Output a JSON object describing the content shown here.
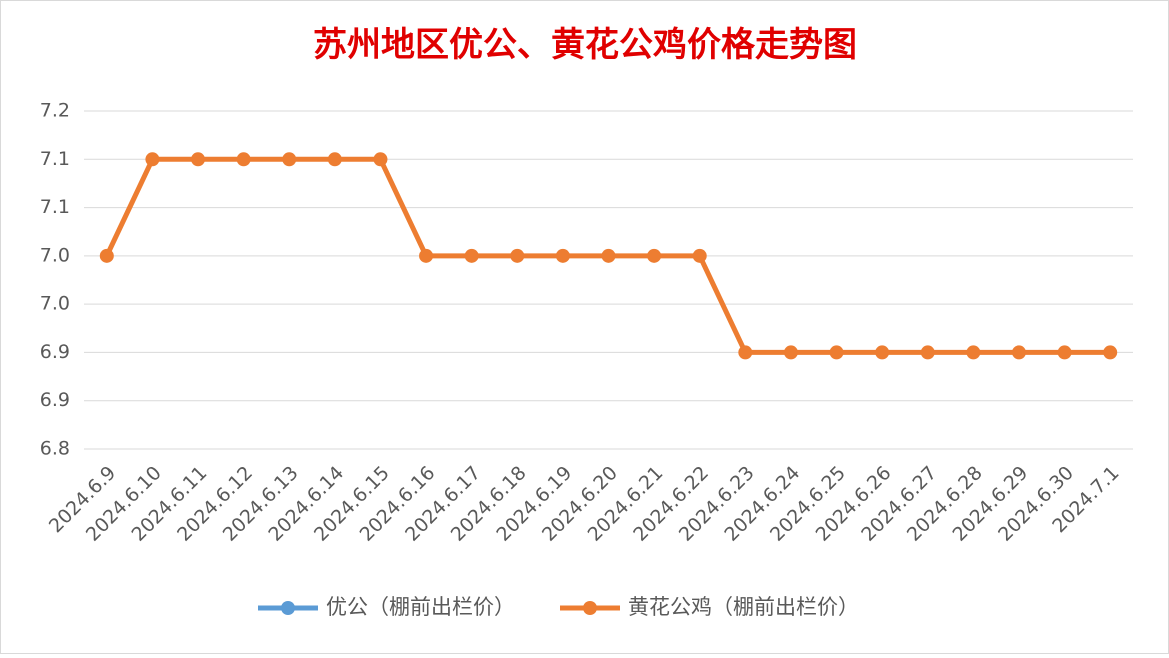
{
  "chart_data": {
    "type": "line",
    "title": "苏州地区优公、黄花公鸡价格走势图",
    "categories": [
      "2024.6.9",
      "2024.6.10",
      "2024.6.11",
      "2024.6.12",
      "2024.6.13",
      "2024.6.14",
      "2024.6.15",
      "2024.6.16",
      "2024.6.17",
      "2024.6.18",
      "2024.6.19",
      "2024.6.20",
      "2024.6.21",
      "2024.6.22",
      "2024.6.23",
      "2024.6.24",
      "2024.6.25",
      "2024.6.26",
      "2024.6.27",
      "2024.6.28",
      "2024.6.29",
      "2024.6.30",
      "2024.7.1"
    ],
    "series": [
      {
        "name": "优公（棚前出栏价）",
        "color": "#5b9bd5",
        "values": [
          null,
          null,
          null,
          null,
          null,
          null,
          null,
          null,
          null,
          null,
          null,
          null,
          null,
          null,
          null,
          null,
          null,
          null,
          null,
          null,
          null,
          null,
          null
        ]
      },
      {
        "name": "黄花公鸡（棚前出栏价）",
        "color": "#ed7d31",
        "values": [
          7.0,
          7.1,
          7.1,
          7.1,
          7.1,
          7.1,
          7.1,
          7.0,
          7.0,
          7.0,
          7.0,
          7.0,
          7.0,
          7.0,
          6.9,
          6.9,
          6.9,
          6.9,
          6.9,
          6.9,
          6.9,
          6.9,
          6.9
        ]
      }
    ],
    "ylim": [
      6.8,
      7.15
    ],
    "yticks": [
      6.8,
      {
        "value": 6.85,
        "label": "6.9"
      },
      6.9,
      {
        "value": 6.95,
        "label": "7.0"
      },
      {
        "value": 7,
        "label": "7.0"
      },
      {
        "value": 7.05,
        "label": "7.1"
      },
      7.1,
      {
        "value": 7.15,
        "label": "7.2"
      }
    ],
    "grid": true,
    "legend": "bottom"
  }
}
